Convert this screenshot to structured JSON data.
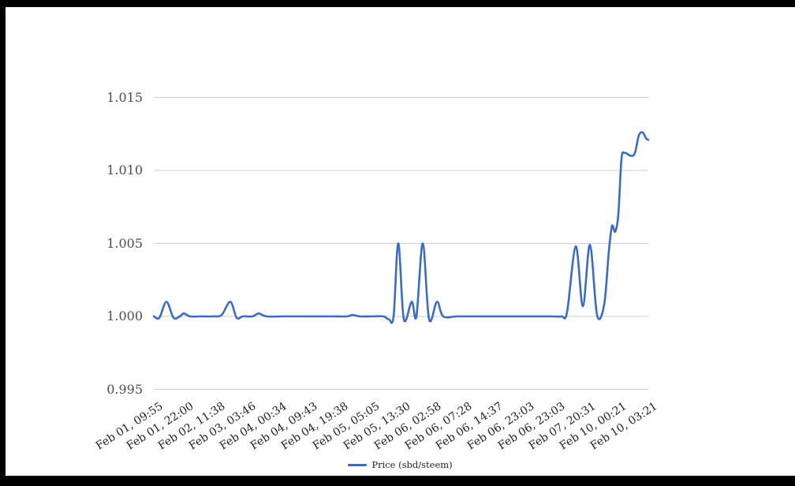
{
  "frame": {
    "border_color": "#000000",
    "page_background": "#ffffff"
  },
  "chart_data": {
    "type": "line",
    "title": "",
    "xlabel": "",
    "ylabel": "",
    "ylim": [
      0.995,
      1.015
    ],
    "grid": "horizontal",
    "grid_color": "#cccccc",
    "axis_label_color_y": "#4d4d4d",
    "axis_label_color_x": "#222222",
    "y_tick_values": [
      0.995,
      1.0,
      1.005,
      1.01,
      1.015
    ],
    "y_tick_labels": [
      "0.995",
      "1.000",
      "1.005",
      "1.010",
      "1.015"
    ],
    "x_tick_labels": [
      "Feb 01, 09:55",
      "Feb 01, 22:00",
      "Feb 02, 11:38",
      "Feb 03, 03:46",
      "Feb 04, 00:34",
      "Feb 04, 09:43",
      "Feb 04, 19:38",
      "Feb 05, 05:05",
      "Feb 05, 13:30",
      "Feb 06, 02:58",
      "Feb 06, 07:28",
      "Feb 06, 14:37",
      "Feb 06, 23:03",
      "Feb 06, 23:03",
      "Feb 07, 20:31",
      "Feb 10, 00:21",
      "Feb 10, 03:21"
    ],
    "legend": {
      "position": "bottom",
      "label": "Price (sbd/steem)"
    },
    "series": [
      {
        "name": "Price (sbd/steem)",
        "color": "#3c6cc0",
        "points": [
          [
            0.0,
            1.0
          ],
          [
            0.0112,
            0.9999
          ],
          [
            0.0255,
            1.001
          ],
          [
            0.0399,
            0.9999
          ],
          [
            0.0526,
            1.0
          ],
          [
            0.0606,
            1.0002
          ],
          [
            0.0734,
            1.0
          ],
          [
            0.0957,
            1.0
          ],
          [
            0.1196,
            1.0
          ],
          [
            0.1372,
            1.0001
          ],
          [
            0.1547,
            1.001
          ],
          [
            0.1675,
            0.9999
          ],
          [
            0.1802,
            1.0
          ],
          [
            0.1994,
            1.0
          ],
          [
            0.2121,
            1.0002
          ],
          [
            0.2281,
            1.0
          ],
          [
            0.2632,
            1.0
          ],
          [
            0.311,
            1.0
          ],
          [
            0.3589,
            1.0
          ],
          [
            0.3907,
            1.0
          ],
          [
            0.4019,
            1.0001
          ],
          [
            0.4163,
            1.0
          ],
          [
            0.4418,
            1.0
          ],
          [
            0.4641,
            1.0
          ],
          [
            0.4753,
            0.9998
          ],
          [
            0.4849,
            1.0
          ],
          [
            0.4944,
            1.005
          ],
          [
            0.5056,
            0.9998
          ],
          [
            0.5215,
            1.001
          ],
          [
            0.5311,
            1.0
          ],
          [
            0.5439,
            1.005
          ],
          [
            0.5566,
            0.9998
          ],
          [
            0.5726,
            1.001
          ],
          [
            0.5853,
            1.0
          ],
          [
            0.614,
            1.0
          ],
          [
            0.6619,
            1.0
          ],
          [
            0.7097,
            1.0
          ],
          [
            0.7576,
            1.0
          ],
          [
            0.8054,
            1.0
          ],
          [
            0.8246,
            1.0
          ],
          [
            0.8357,
            1.0003
          ],
          [
            0.8533,
            1.0048
          ],
          [
            0.8676,
            1.0007
          ],
          [
            0.882,
            1.0049
          ],
          [
            0.8964,
            1.0001
          ],
          [
            0.9107,
            1.0008
          ],
          [
            0.9203,
            1.0045
          ],
          [
            0.9266,
            1.0062
          ],
          [
            0.933,
            1.0058
          ],
          [
            0.9394,
            1.007
          ],
          [
            0.9458,
            1.0108
          ],
          [
            0.9522,
            1.0112
          ],
          [
            0.9649,
            1.011
          ],
          [
            0.9729,
            1.0112
          ],
          [
            0.9809,
            1.0124
          ],
          [
            0.9888,
            1.0126
          ],
          [
            0.9952,
            1.0122
          ],
          [
            1.0,
            1.0121
          ]
        ]
      }
    ]
  }
}
